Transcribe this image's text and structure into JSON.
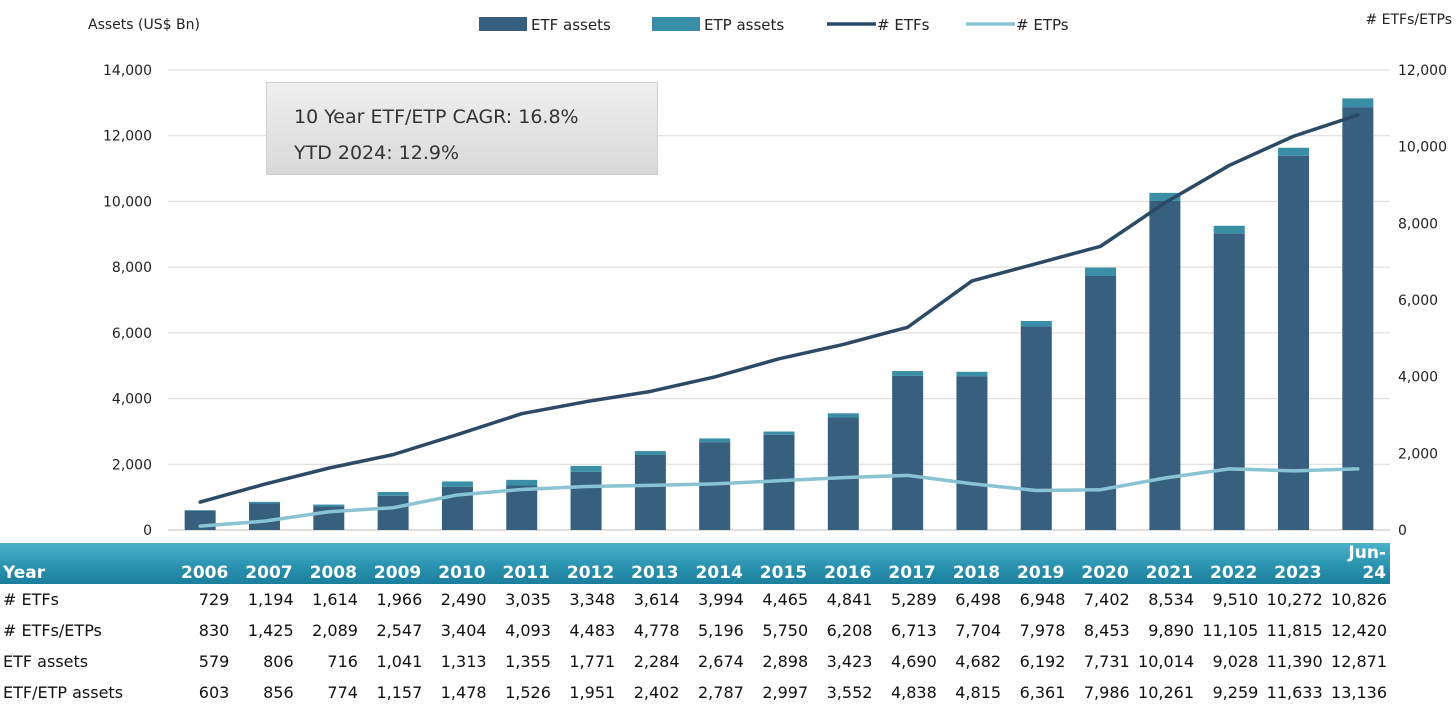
{
  "legend": {
    "etf_assets": "ETF assets",
    "etp_assets": "ETP assets",
    "num_etfs": "# ETFs",
    "num_etps": "# ETPs"
  },
  "axes": {
    "left_title": "Assets (US$ Bn)",
    "right_title": "# ETFs/ETPs",
    "left_ticks": [
      "0",
      "2,000",
      "4,000",
      "6,000",
      "8,000",
      "10,000",
      "12,000",
      "14,000"
    ],
    "right_ticks": [
      "0",
      "2,000",
      "4,000",
      "6,000",
      "8,000",
      "10,000",
      "12,000"
    ]
  },
  "callout": {
    "line1": "10 Year ETF/ETP CAGR: 16.8%",
    "line2": "YTD 2024: 12.9%"
  },
  "colors": {
    "etf_assets": "#37607f",
    "etp_assets": "#3a8fa6",
    "num_etfs": "#2b4a66",
    "num_etps": "#89c3d4",
    "grid": "#d9d9d9",
    "table_header": "#2a93b0"
  },
  "chart_data": {
    "type": "bar",
    "categories": [
      "2006",
      "2007",
      "2008",
      "2009",
      "2010",
      "2011",
      "2012",
      "2013",
      "2014",
      "2015",
      "2016",
      "2017",
      "2018",
      "2019",
      "2020",
      "2021",
      "2022",
      "2023",
      "Jun-24"
    ],
    "ylim": [
      0,
      14000
    ],
    "y2lim": [
      0,
      12000
    ],
    "ylabel": "Assets (US$ Bn)",
    "y2label": "# ETFs/ETPs",
    "grid": true,
    "legend_position": "top",
    "series": [
      {
        "name": "ETF assets",
        "kind": "bar",
        "axis": "left",
        "values": [
          579,
          806,
          716,
          1041,
          1313,
          1355,
          1771,
          2284,
          2674,
          2898,
          3423,
          4690,
          4682,
          6192,
          7731,
          10014,
          9028,
          11390,
          12871
        ]
      },
      {
        "name": "ETP assets",
        "kind": "bar-stack",
        "axis": "left",
        "values": [
          24,
          50,
          58,
          116,
          165,
          171,
          180,
          118,
          113,
          99,
          129,
          148,
          133,
          169,
          255,
          247,
          231,
          243,
          265
        ]
      },
      {
        "name": "# ETFs",
        "kind": "line",
        "axis": "right",
        "values": [
          729,
          1194,
          1614,
          1966,
          2490,
          3035,
          3348,
          3614,
          3994,
          4465,
          4841,
          5289,
          6498,
          6948,
          7402,
          8534,
          9510,
          10272,
          10826
        ]
      },
      {
        "name": "# ETPs",
        "kind": "line",
        "axis": "right",
        "values": [
          101,
          231,
          475,
          581,
          914,
          1058,
          1135,
          1164,
          1202,
          1285,
          1367,
          1424,
          1206,
          1030,
          1051,
          1356,
          1595,
          1543,
          1594
        ]
      }
    ]
  },
  "table": {
    "header_label": "Year",
    "columns": [
      "2006",
      "2007",
      "2008",
      "2009",
      "2010",
      "2011",
      "2012",
      "2013",
      "2014",
      "2015",
      "2016",
      "2017",
      "2018",
      "2019",
      "2020",
      "2021",
      "2022",
      "2023",
      "Jun-24"
    ],
    "rows": [
      {
        "label": "# ETFs",
        "values": [
          "729",
          "1,194",
          "1,614",
          "1,966",
          "2,490",
          "3,035",
          "3,348",
          "3,614",
          "3,994",
          "4,465",
          "4,841",
          "5,289",
          "6,498",
          "6,948",
          "7,402",
          "8,534",
          "9,510",
          "10,272",
          "10,826"
        ]
      },
      {
        "label": "# ETFs/ETPs",
        "values": [
          "830",
          "1,425",
          "2,089",
          "2,547",
          "3,404",
          "4,093",
          "4,483",
          "4,778",
          "5,196",
          "5,750",
          "6,208",
          "6,713",
          "7,704",
          "7,978",
          "8,453",
          "9,890",
          "11,105",
          "11,815",
          "12,420"
        ]
      },
      {
        "label": "ETF assets",
        "values": [
          "579",
          "806",
          "716",
          "1,041",
          "1,313",
          "1,355",
          "1,771",
          "2,284",
          "2,674",
          "2,898",
          "3,423",
          "4,690",
          "4,682",
          "6,192",
          "7,731",
          "10,014",
          "9,028",
          "11,390",
          "12,871"
        ]
      },
      {
        "label": "ETF/ETP assets",
        "values": [
          "603",
          "856",
          "774",
          "1,157",
          "1,478",
          "1,526",
          "1,951",
          "2,402",
          "2,787",
          "2,997",
          "3,552",
          "4,838",
          "4,815",
          "6,361",
          "7,986",
          "10,261",
          "9,259",
          "11,633",
          "13,136"
        ]
      }
    ]
  }
}
